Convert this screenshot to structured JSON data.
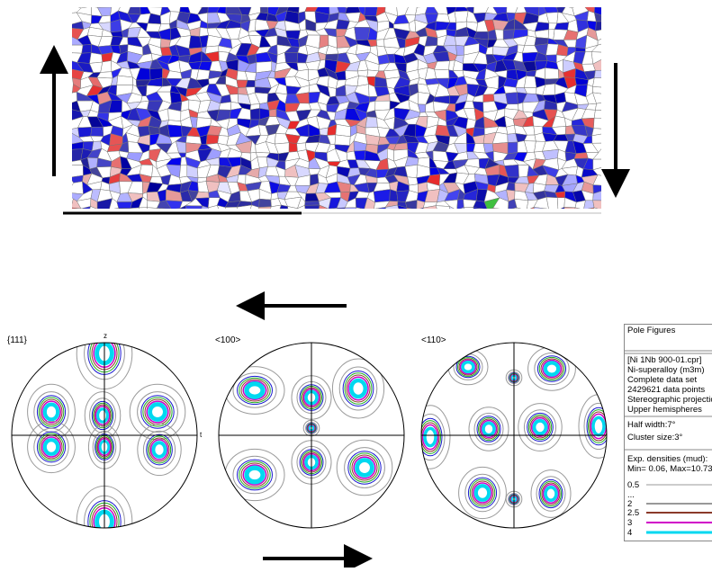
{
  "pole_figures": [
    {
      "label": "{111}",
      "axis_top": "z",
      "axis_right": "t"
    },
    {
      "label": "<100>"
    },
    {
      "label": "<110>"
    }
  ],
  "legend": {
    "title": "Pole Figures",
    "info": [
      "[Ni 1Nb 900-01.cpr]",
      "Ni-superalloy (m3m)",
      "Complete data set",
      "2429621 data points",
      "Stereographic projectio",
      "Upper hemispheres"
    ],
    "params": [
      "Half width:7°",
      "Cluster size:3°"
    ],
    "densities": [
      "Exp. densities (mud):",
      "Min= 0.06, Max=10.73"
    ],
    "levels": [
      {
        "label": "0.5",
        "color": "#9a9a9a"
      },
      {
        "label": "..."
      },
      {
        "label": "2",
        "color": "#333333"
      },
      {
        "label": "2.5",
        "color": "#8b3a2a"
      },
      {
        "label": "3",
        "color": "#d000c8"
      },
      {
        "label": "4",
        "color": "#00d8f0"
      }
    ]
  }
}
